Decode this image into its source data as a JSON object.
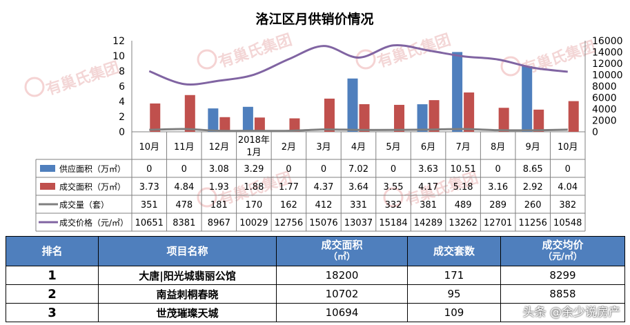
{
  "chart_data": {
    "type": "bar+line",
    "title": "洛江区月供销价情况",
    "categories": [
      "10月",
      "11月",
      "12月",
      "2018年1月",
      "2月",
      "3月",
      "4月",
      "5月",
      "6月",
      "7月",
      "8月",
      "9月",
      "10月"
    ],
    "left_axis": {
      "min": 0,
      "max": 12,
      "ticks": [
        "0",
        "2",
        "4",
        "6",
        "8",
        "10",
        "12"
      ]
    },
    "right_axis": {
      "min": 0,
      "max": 16000,
      "ticks": [
        "0",
        "2000",
        "4000",
        "6000",
        "8000",
        "10000",
        "12000",
        "14000",
        "16000"
      ]
    },
    "series": [
      {
        "name": "供应面积（万㎡）",
        "type": "bar",
        "axis": "left",
        "color": "#4f7fbd",
        "values": [
          0,
          0,
          3.08,
          3.29,
          0,
          0,
          7.02,
          0,
          3.63,
          10.51,
          0,
          8.65,
          0
        ],
        "labels": [
          "0",
          "0",
          "3.08",
          "3.29",
          "0",
          "0",
          "7.02",
          "0",
          "3.63",
          "10.51",
          "0",
          "8.65",
          "0"
        ]
      },
      {
        "name": "成交面积（万㎡）",
        "type": "bar",
        "axis": "left",
        "color": "#c0504d",
        "values": [
          3.73,
          4.84,
          1.93,
          1.88,
          1.77,
          4.37,
          3.64,
          3.55,
          4.17,
          5.18,
          3.16,
          2.92,
          4.04
        ],
        "labels": [
          "3.73",
          "4.84",
          "1.93",
          "1.88",
          "1.77",
          "4.37",
          "3.64",
          "3.55",
          "4.17",
          "5.18",
          "3.16",
          "2.92",
          "4.04"
        ]
      },
      {
        "name": "成交量（套）",
        "type": "line",
        "axis": "right",
        "color": "#7f7f7f",
        "values": [
          351,
          478,
          181,
          170,
          162,
          412,
          331,
          332,
          381,
          489,
          289,
          260,
          382
        ],
        "labels": [
          "351",
          "478",
          "181",
          "170",
          "162",
          "412",
          "331",
          "332",
          "381",
          "489",
          "289",
          "260",
          "382"
        ]
      },
      {
        "name": "成交价格（元/㎡）",
        "type": "line",
        "axis": "right",
        "color": "#8064a2",
        "values": [
          10651,
          8381,
          8967,
          10029,
          12756,
          15076,
          13037,
          15184,
          14289,
          13262,
          12701,
          11256,
          10548
        ],
        "labels": [
          "10651",
          "8381",
          "8967",
          "10029",
          "12756",
          "15076",
          "13037",
          "15184",
          "14289",
          "13262",
          "12701",
          "11256",
          "10548"
        ]
      }
    ]
  },
  "ranking": {
    "headers": [
      {
        "main": "排名",
        "sub": ""
      },
      {
        "main": "项目名称",
        "sub": ""
      },
      {
        "main": "成交面积",
        "sub": "（㎡）"
      },
      {
        "main": "成交套数",
        "sub": ""
      },
      {
        "main": "成交均价",
        "sub": "（元/㎡）"
      }
    ],
    "rows": [
      {
        "rank": "1",
        "name": "大唐|阳光城翡丽公馆",
        "area": "18200",
        "units": "171",
        "price": "8299"
      },
      {
        "rank": "2",
        "name": "南益刺桐春晓",
        "area": "10702",
        "units": "95",
        "price": "8858"
      },
      {
        "rank": "3",
        "name": "世茂璀璨天城",
        "area": "10694",
        "units": "109",
        "price": ""
      }
    ]
  },
  "watermarks": [
    "有巢氏集团"
  ],
  "footer_watermark": "头条 @余少说房产"
}
